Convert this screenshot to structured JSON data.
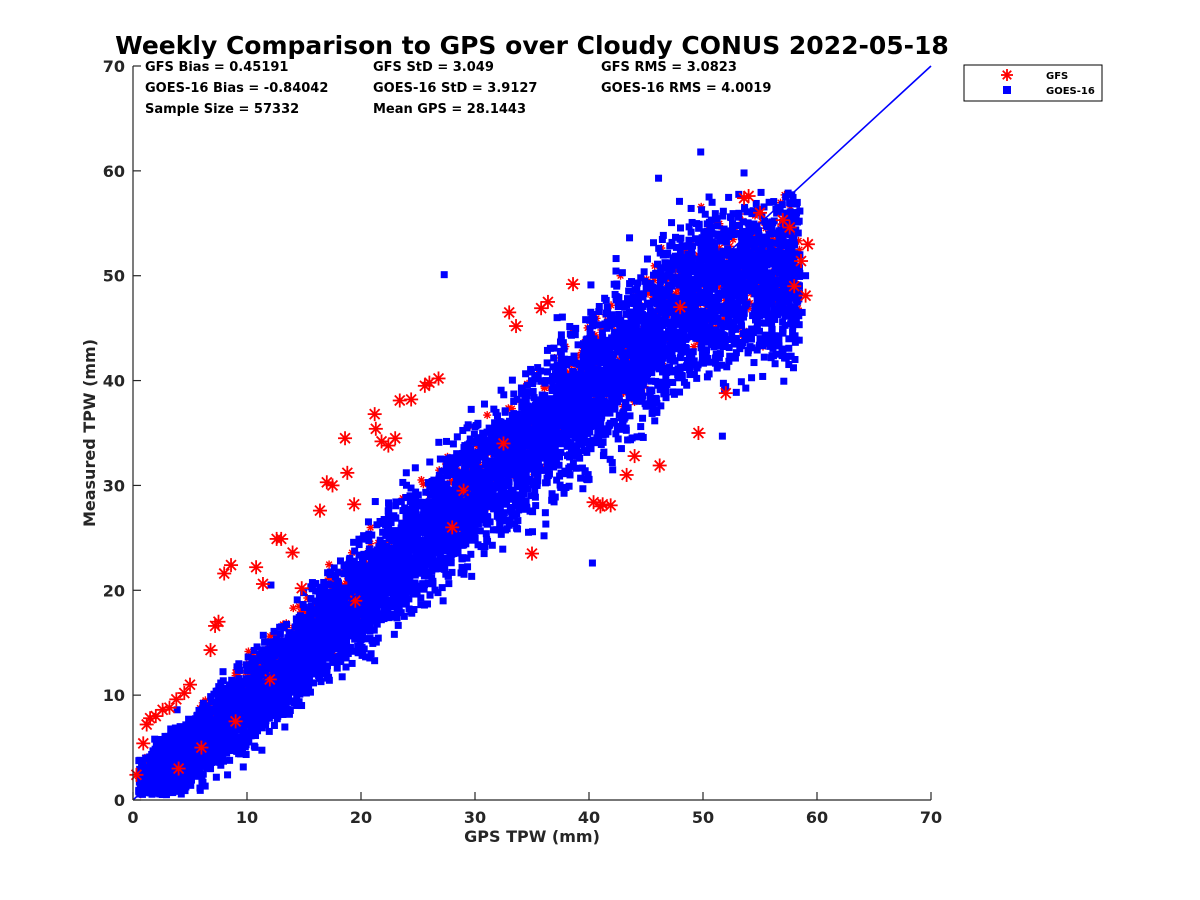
{
  "chart_data": {
    "type": "scatter",
    "title": "Weekly Comparison to GPS over Cloudy CONUS 2022-05-18",
    "xlabel": "GPS TPW (mm)",
    "ylabel": "Measured TPW (mm)",
    "xlim": [
      0,
      70
    ],
    "ylim": [
      0,
      70
    ],
    "xticks": [
      "0",
      "10",
      "20",
      "30",
      "40",
      "50",
      "60",
      "70"
    ],
    "yticks": [
      "0",
      "10",
      "20",
      "30",
      "40",
      "50",
      "60",
      "70"
    ],
    "grid": false,
    "legend_position": "outside-top-right",
    "stats": [
      [
        "GFS Bias = 0.45191",
        "GFS StD = 3.049",
        "GFS RMS = 3.0823"
      ],
      [
        "GOES-16 Bias = -0.84042",
        "GOES-16 StD = 3.9127",
        "GOES-16 RMS = 4.0019"
      ],
      [
        "Sample Size = 57332",
        "Mean GPS = 28.1443",
        ""
      ]
    ],
    "reference_line": {
      "x": [
        0,
        70
      ],
      "y": [
        0,
        70
      ],
      "color": "#0000ff"
    },
    "series": [
      {
        "name": "GFS",
        "marker": "asterisk",
        "color": "#ff0000",
        "x": [
          0.3,
          0.9,
          1.2,
          1.5,
          2.0,
          2.6,
          3.2,
          3.8,
          4.5,
          5.0,
          6.8,
          7.2,
          7.5,
          8.0,
          8.6,
          10.8,
          11.4,
          12.6,
          13.0,
          14.0,
          14.8,
          16.4,
          17.0,
          17.5,
          18.6,
          18.8,
          19.4,
          21.2,
          21.3,
          21.8,
          22.4,
          23.0,
          23.4,
          24.4,
          25.6,
          26.0,
          26.8,
          33.0,
          33.6,
          35.0,
          35.8,
          36.4,
          38.6,
          40.4,
          41.2,
          41.9,
          43.3,
          44.0,
          46.2,
          49.6,
          52.0,
          53.6,
          54.0,
          55.0,
          57.0,
          57.6,
          58.0,
          58.6,
          59.0,
          59.2,
          41.0,
          29.0,
          28.0,
          19.5,
          12.0,
          9.0,
          6.0,
          4.0,
          32.5,
          48.0
        ],
        "y": [
          2.4,
          5.4,
          7.2,
          7.8,
          8.0,
          8.6,
          8.8,
          9.6,
          10.2,
          11.0,
          14.3,
          16.6,
          17.0,
          21.6,
          22.4,
          22.2,
          20.6,
          24.9,
          24.9,
          23.6,
          20.2,
          27.6,
          30.3,
          30.0,
          34.5,
          31.2,
          28.2,
          36.8,
          35.4,
          34.2,
          33.8,
          34.5,
          38.1,
          38.2,
          39.5,
          39.8,
          40.2,
          46.5,
          45.2,
          23.5,
          46.9,
          47.5,
          49.2,
          28.4,
          28.2,
          28.1,
          31.0,
          32.8,
          31.9,
          35.0,
          38.8,
          57.4,
          57.6,
          56.0,
          55.3,
          54.6,
          49.0,
          51.4,
          48.1,
          53.0,
          28.0,
          29.5,
          26.0,
          19.0,
          11.5,
          7.5,
          5.0,
          3.0,
          34.0,
          47.0
        ]
      },
      {
        "name": "GOES-16",
        "marker": "square",
        "color": "#0000ff",
        "x": [
          0.8,
          2.0,
          3.5,
          5.2,
          6.1,
          7.6,
          8.9,
          10.2,
          11.7,
          13.3,
          14.8,
          16.1,
          17.5,
          19.0,
          20.4,
          21.9,
          23.1,
          24.6,
          26.0,
          27.4,
          28.8,
          30.3,
          31.7,
          33.1,
          34.6,
          36.0,
          37.3,
          38.8,
          40.2,
          41.6,
          43.0,
          44.4,
          45.9,
          47.3,
          48.6,
          50.1,
          51.5,
          52.9,
          54.4,
          55.8,
          57.2,
          58.5,
          59.0,
          49.8,
          46.1,
          53.6,
          27.3,
          30.8,
          40.3,
          37.2,
          51.7,
          22.4,
          18.2,
          12.1,
          8.7,
          42.5,
          55.0,
          58.7,
          26.5,
          34.2,
          15.9,
          44.8,
          10.4,
          6.3
        ],
        "y": [
          1.0,
          2.5,
          4.0,
          5.5,
          7.0,
          8.4,
          9.8,
          11.2,
          12.7,
          14.1,
          15.6,
          17.0,
          18.5,
          20.0,
          21.4,
          22.9,
          24.3,
          25.8,
          27.2,
          28.7,
          30.1,
          31.6,
          33.0,
          34.5,
          36.0,
          37.4,
          38.8,
          40.3,
          41.8,
          43.2,
          44.7,
          46.1,
          47.6,
          49.0,
          50.5,
          51.9,
          53.3,
          54.8,
          56.2,
          57.0,
          55.5,
          52.0,
          50.0,
          61.8,
          59.3,
          59.8,
          50.1,
          23.5,
          22.6,
          46.0,
          34.7,
          27.0,
          22.8,
          20.5,
          11.2,
          38.0,
          44.0,
          46.5,
          24.0,
          28.0,
          13.0,
          40.5,
          6.5,
          4.0
        ]
      }
    ],
    "scatter_cloud": {
      "GOES-16": {
        "spine": [
          [
            1,
            1
          ],
          [
            10,
            9
          ],
          [
            20,
            19.5
          ],
          [
            30,
            29.5
          ],
          [
            40,
            39
          ],
          [
            50,
            48.5
          ],
          [
            57,
            50
          ]
        ],
        "spread_mm": 4.4
      },
      "GFS": {
        "spine": [
          [
            1,
            1.5
          ],
          [
            10,
            10.5
          ],
          [
            20,
            20.5
          ],
          [
            30,
            30.5
          ],
          [
            40,
            40.5
          ],
          [
            50,
            50
          ],
          [
            58,
            51
          ]
        ],
        "spread_mm": 3.0
      }
    }
  }
}
